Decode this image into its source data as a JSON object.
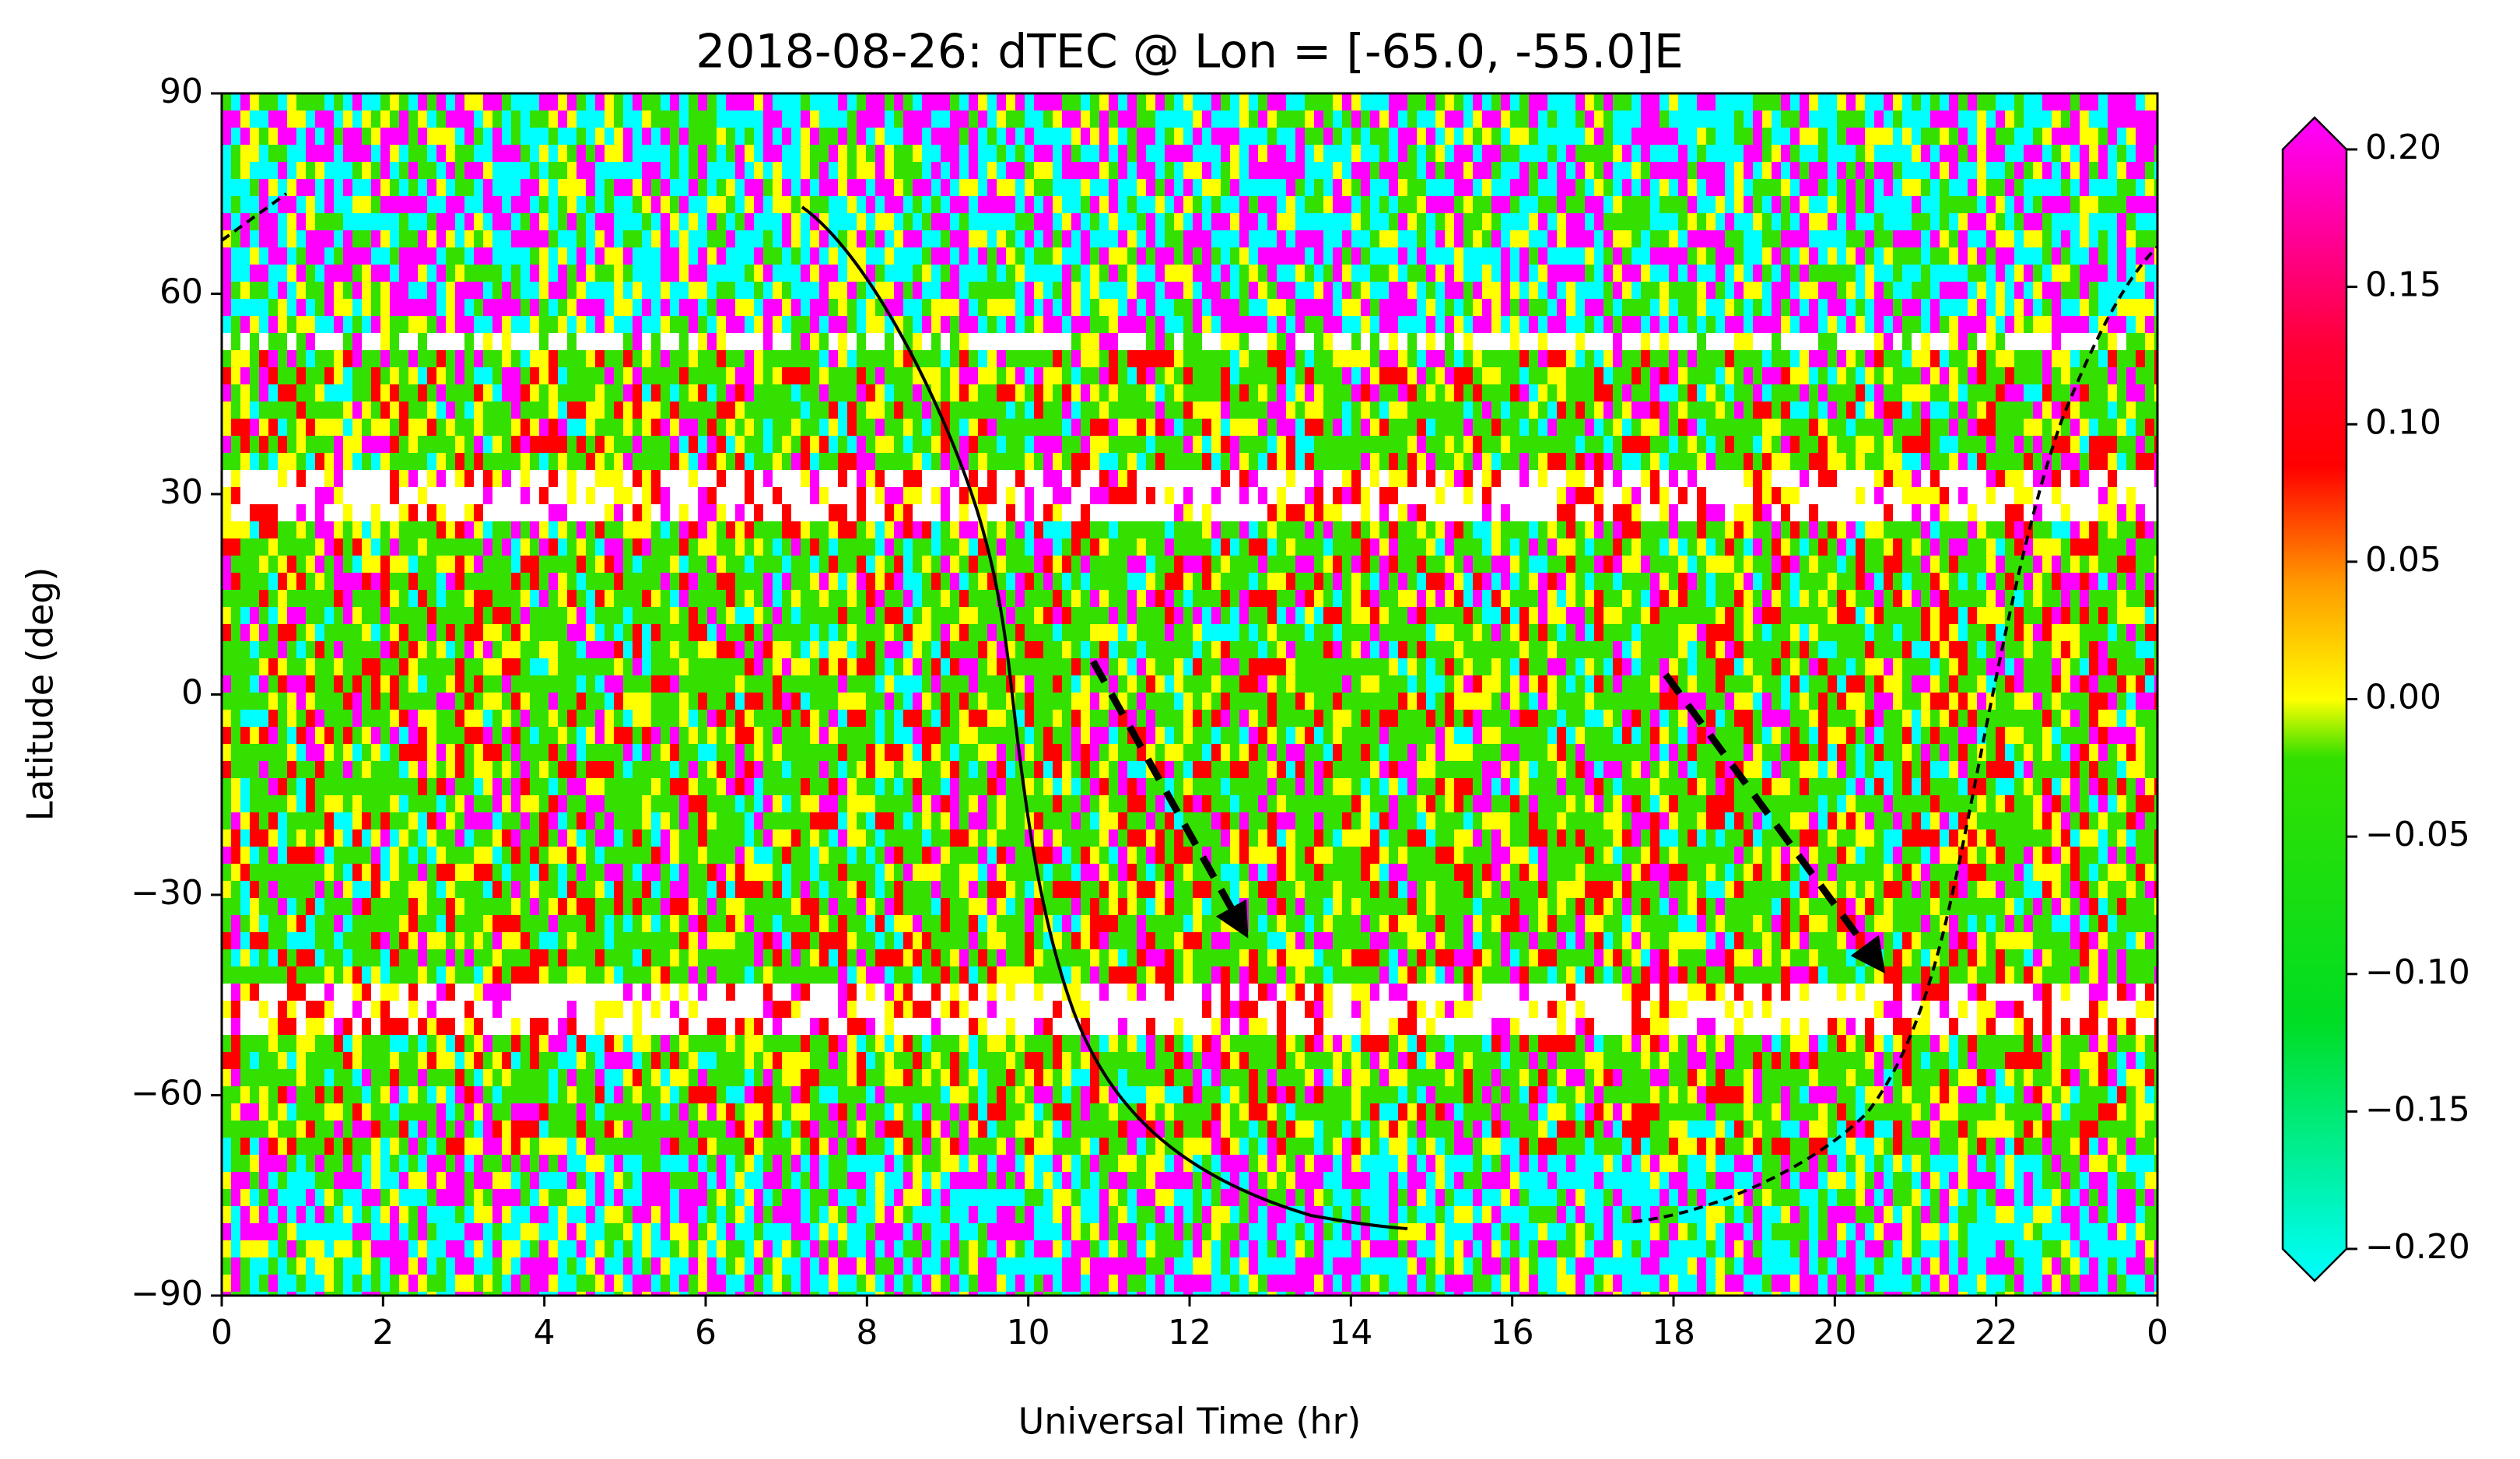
{
  "chart_data": {
    "type": "heatmap",
    "title": "2018-08-26: dTEC @   Lon = [-65.0, -55.0]E",
    "xlabel": "Universal Time (hr)",
    "ylabel": "Latitude (deg)",
    "xlim": [
      0,
      24
    ],
    "xticks": [
      0,
      2,
      4,
      6,
      8,
      10,
      12,
      14,
      16,
      18,
      20,
      22,
      {
        "value": 24,
        "label": "0"
      }
    ],
    "ylim": [
      -90,
      90
    ],
    "yticks": [
      {
        "value": -90,
        "label": "−90"
      },
      {
        "value": -60,
        "label": "−60"
      },
      {
        "value": -30,
        "label": "−30"
      },
      0,
      30,
      60,
      90
    ],
    "clim": [
      -0.2,
      0.2
    ],
    "cticks": [
      {
        "value": -0.2,
        "label": "−0.20"
      },
      {
        "value": -0.15,
        "label": "−0.15"
      },
      {
        "value": -0.1,
        "label": "−0.10"
      },
      {
        "value": -0.05,
        "label": "−0.05"
      },
      {
        "value": 0,
        "label": "0.00"
      },
      {
        "value": 0.05,
        "label": "0.05"
      },
      {
        "value": 0.1,
        "label": "0.10"
      },
      {
        "value": 0.15,
        "label": "0.15"
      },
      {
        "value": 0.2,
        "label": "0.20"
      }
    ],
    "colormap": [
      {
        "value": -0.2,
        "color": "#00ffff"
      },
      {
        "value": -0.11,
        "color": "#00dd22"
      },
      {
        "value": -0.02,
        "color": "#33e000"
      },
      {
        "value": 0,
        "color": "#ffff00"
      },
      {
        "value": 0.04,
        "color": "#ff9900"
      },
      {
        "value": 0.08,
        "color": "#ff0000"
      },
      {
        "value": 0.12,
        "color": "#ff0033"
      },
      {
        "value": 0.2,
        "color": "#ff00ff"
      }
    ]
  }
}
